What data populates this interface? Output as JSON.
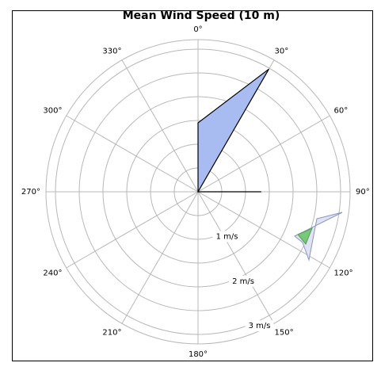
{
  "chart_data": {
    "type": "polar",
    "title": "Mean Wind Speed (10 m)",
    "categories": [
      "0°",
      "30°",
      "60°",
      "90°",
      "120°",
      "150°",
      "180°",
      "210°",
      "240°",
      "270°",
      "300°",
      "330°"
    ],
    "values": [
      1.45,
      2.98,
      0,
      1.33,
      0,
      0,
      0,
      0,
      0,
      0,
      0,
      0
    ],
    "color": "#a8bcf2",
    "rlim": [
      0,
      3.2
    ],
    "rticks": [
      {
        "value": 1,
        "label": "1 m/s"
      },
      {
        "value": 2,
        "label": "2 m/s"
      },
      {
        "value": 3,
        "label": "3 m/s"
      }
    ],
    "minor_rticks": [
      0.5,
      1.5,
      2.5
    ],
    "grid": true
  }
}
